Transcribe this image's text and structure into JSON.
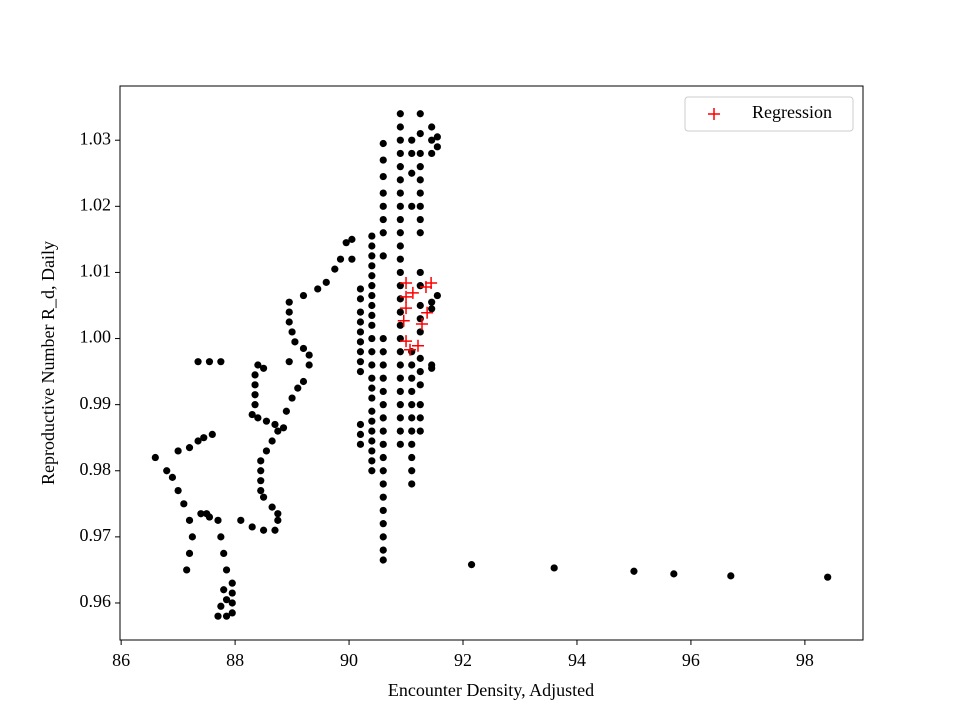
{
  "chart_data": {
    "type": "scatter",
    "xlabel": "Encounter Density, Adjusted",
    "ylabel": "Reproductive Number R_d, Daily",
    "xlim": [
      85.98,
      99.02
    ],
    "ylim": [
      0.9544,
      1.0382
    ],
    "xticks": [
      86,
      88,
      90,
      92,
      94,
      96,
      98
    ],
    "yticks": [
      0.96,
      0.97,
      0.98,
      0.99,
      {
        "value": 1,
        "label": "1.00"
      },
      1.01,
      1.02,
      1.03
    ],
    "legend": "upper right",
    "series": [
      {
        "color": "#000000",
        "marker": "dot",
        "x": [
          86.6,
          86.8,
          87.0,
          86.9,
          87.0,
          87.1,
          87.2,
          87.25,
          87.2,
          87.15,
          87.4,
          87.5,
          87.55,
          87.7,
          87.75,
          87.8,
          87.85,
          87.8,
          87.75,
          87.7,
          87.85,
          87.95,
          87.95,
          87.95,
          87.95,
          87.85,
          88.1,
          88.3,
          88.5,
          88.7,
          88.75,
          88.75,
          88.65,
          88.5,
          88.45,
          88.45,
          88.45,
          88.45,
          88.55,
          88.65,
          88.75,
          88.7,
          88.55,
          88.4,
          88.3,
          88.35,
          88.35,
          88.35,
          88.35,
          88.4,
          88.5,
          87.75,
          87.55,
          87.35,
          87.6,
          87.45,
          87.35,
          87.2,
          88.85,
          88.9,
          89.0,
          89.1,
          89.2,
          89.3,
          89.3,
          89.2,
          89.05,
          89.0,
          88.95,
          88.95,
          88.95,
          89.2,
          89.45,
          89.6,
          89.75,
          89.85,
          89.95,
          90.05,
          90.05,
          88.95,
          92.15,
          93.6,
          95.0,
          95.7,
          96.7,
          98.4,
          90.2,
          90.2,
          90.2,
          90.2,
          90.2,
          90.2,
          90.2,
          90.2,
          90.2,
          90.2,
          90.2,
          90.2,
          90.4,
          90.4,
          90.4,
          90.4,
          90.4,
          90.4,
          90.4,
          90.4,
          90.4,
          90.4,
          90.4,
          90.4,
          90.4,
          90.4,
          90.4,
          90.4,
          90.4,
          90.4,
          90.4,
          90.4,
          90.4,
          90.4,
          90.4,
          90.6,
          90.6,
          90.6,
          90.6,
          90.6,
          90.6,
          90.6,
          90.6,
          90.6,
          90.6,
          90.6,
          90.6,
          90.6,
          90.6,
          90.6,
          90.6,
          90.6,
          90.6,
          90.6,
          90.6,
          90.6,
          90.6,
          90.6,
          90.6,
          90.6,
          90.6,
          90.9,
          90.9,
          90.9,
          90.9,
          90.9,
          90.9,
          90.9,
          90.9,
          90.9,
          90.9,
          90.9,
          90.9,
          90.9,
          90.9,
          90.9,
          90.9,
          90.9,
          90.9,
          90.9,
          90.9,
          90.9,
          90.9,
          90.9,
          90.9,
          90.9,
          90.9,
          91.1,
          91.1,
          91.1,
          91.1,
          91.1,
          91.1,
          91.1,
          91.1,
          91.1,
          91.1,
          91.1,
          91.1,
          91.1,
          91.1,
          91.1,
          91.25,
          91.25,
          91.25,
          91.25,
          91.25,
          91.25,
          91.25,
          91.25,
          91.25,
          91.25,
          91.25,
          91.25,
          91.25,
          91.25,
          91.25,
          91.25,
          91.25,
          91.25,
          91.25,
          91.25,
          91.45,
          91.45,
          91.45,
          91.45,
          91.45,
          91.45,
          91.45,
          91.55,
          91.55,
          91.55
        ],
        "values": [
          0.982,
          0.98,
          0.983,
          0.979,
          0.977,
          0.975,
          0.9725,
          0.97,
          0.9675,
          0.965,
          0.9735,
          0.9735,
          0.973,
          0.9725,
          0.97,
          0.9675,
          0.965,
          0.962,
          0.9595,
          0.958,
          0.958,
          0.9585,
          0.96,
          0.9615,
          0.963,
          0.9605,
          0.9725,
          0.9715,
          0.971,
          0.971,
          0.9725,
          0.9735,
          0.9745,
          0.976,
          0.977,
          0.9785,
          0.98,
          0.9815,
          0.983,
          0.9845,
          0.986,
          0.987,
          0.9875,
          0.988,
          0.9885,
          0.99,
          0.9915,
          0.993,
          0.9945,
          0.996,
          0.9955,
          0.9965,
          0.9965,
          0.9965,
          0.9855,
          0.985,
          0.9845,
          0.9835,
          0.9865,
          0.989,
          0.991,
          0.9925,
          0.9935,
          0.996,
          0.9975,
          0.9985,
          0.9995,
          1.001,
          1.0025,
          1.004,
          1.0055,
          1.0065,
          1.0075,
          1.0085,
          1.0105,
          1.012,
          1.0145,
          1.015,
          1.012,
          0.9965,
          0.9658,
          0.9653,
          0.9648,
          0.9644,
          0.9641,
          0.9639,
          1.0075,
          1.006,
          1.004,
          1.0025,
          1.001,
          0.9995,
          0.998,
          0.9965,
          0.995,
          0.987,
          0.9855,
          0.984,
          1.0155,
          1.014,
          1.0125,
          1.011,
          1.0095,
          1.008,
          1.0065,
          1.005,
          1.0035,
          1.002,
          1.0,
          0.998,
          0.996,
          0.994,
          0.9925,
          0.991,
          0.989,
          0.9875,
          0.986,
          0.9845,
          0.983,
          0.9815,
          0.98,
          1.0295,
          1.027,
          1.0245,
          1.022,
          1.02,
          1.018,
          1.016,
          1.0125,
          1.0,
          0.998,
          0.996,
          0.994,
          0.992,
          0.99,
          0.988,
          0.986,
          0.984,
          0.982,
          0.98,
          0.978,
          0.976,
          0.974,
          0.972,
          0.97,
          0.968,
          0.9665,
          1.034,
          1.032,
          1.03,
          1.028,
          1.026,
          1.024,
          1.022,
          1.02,
          1.018,
          1.016,
          1.014,
          1.012,
          1.01,
          1.008,
          1.006,
          1.004,
          1.002,
          1.0,
          0.998,
          0.996,
          0.994,
          0.992,
          0.99,
          0.988,
          0.986,
          0.984,
          1.03,
          1.028,
          1.025,
          1.02,
          0.998,
          0.996,
          0.994,
          0.992,
          0.99,
          0.988,
          0.986,
          0.984,
          0.982,
          0.98,
          0.978,
          1.034,
          1.031,
          1.028,
          1.026,
          1.024,
          1.022,
          1.02,
          1.018,
          1.016,
          1.01,
          1.008,
          1.005,
          1.003,
          1.001,
          0.997,
          0.995,
          0.993,
          0.99,
          0.988,
          0.986,
          1.032,
          1.03,
          1.028,
          1.0055,
          1.0045,
          0.996,
          0.9955,
          1.0305,
          1.029,
          1.0065
        ]
      },
      {
        "name": "Regression",
        "color": "#ff0000",
        "marker": "plus",
        "x": [
          91.0,
          91.44,
          91.0,
          91.12,
          91.35,
          91.0,
          91.37,
          90.96,
          91.28,
          91.0,
          91.21,
          91.07
        ],
        "values": [
          1.0084,
          1.0084,
          1.0063,
          1.0069,
          1.0078,
          1.0046,
          1.0039,
          1.0027,
          1.0022,
          0.9996,
          0.9989,
          0.9983
        ]
      }
    ]
  }
}
